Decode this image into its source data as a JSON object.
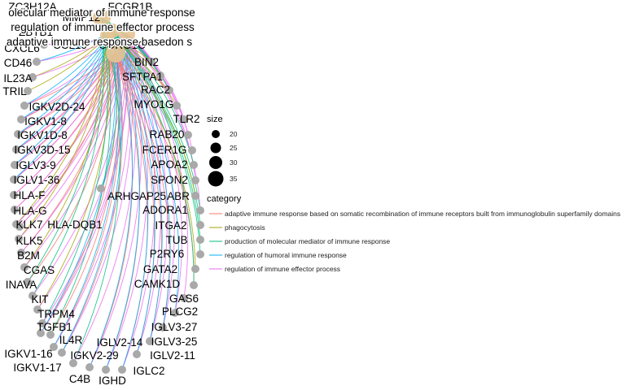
{
  "chart_data": {
    "type": "network",
    "categories": [
      {
        "name": "adaptive immune response based on somatic recombination of immune receptors built from immunoglobulin superfamily domains",
        "display": "adaptive immune response basedon s",
        "color": "#F8766D"
      },
      {
        "name": "phagocytosis",
        "display": "phagocytosis",
        "color": "#A3A500"
      },
      {
        "name": "production of molecular mediator of immune response",
        "display": "olecular mediator of immune response",
        "color": "#00BF7D"
      },
      {
        "name": "regulation of humoral immune response",
        "display": "",
        "color": "#00B0F6"
      },
      {
        "name": "regulation of immune effector process",
        "display": "regulation of immune effector process",
        "color": "#E76BF3"
      }
    ],
    "top_overlap_labels": [
      "ZC3H12A",
      "MMP12",
      "ZBTB1",
      "CCL19",
      "CORO1C",
      "FCGR1B"
    ],
    "genes": [
      "CXCL6",
      "CD46",
      "IL23A",
      "TRIL",
      "IGKV2D-24",
      "IGKV1-8",
      "IGKV1D-8",
      "IGKV3D-15",
      "IGLV3-9",
      "IGLV1-36",
      "HLA-F",
      "HLA-G",
      "KLK7",
      "HLA-DQB1",
      "KLK5",
      "B2M",
      "CGAS",
      "INAVA",
      "KIT",
      "TRPM4",
      "TGFB1",
      "IL4R",
      "IGKV1-16",
      "IGKV1-17",
      "IGKV2-29",
      "C4B",
      "IGHD",
      "IGLC2",
      "IGLV2-14",
      "IGLV2-11",
      "IGLV3-25",
      "IGLV3-27",
      "PLCG2",
      "GAS6",
      "CAMK1D",
      "GATA2",
      "P2RY6",
      "TUB",
      "ITGA2",
      "ADORA1",
      "ABR",
      "ARHGAP25",
      "SPON2",
      "APOA2",
      "FCER1G",
      "RAB20",
      "TLR2",
      "MYO1G",
      "RAC2",
      "SFTPA1",
      "BIN2"
    ]
  },
  "legend": {
    "size_title": "size",
    "size_values": [
      20,
      25,
      30,
      35
    ],
    "category_title": "category",
    "category_labels": [
      "adaptive immune response based on somatic recombination of immune receptors built from immunoglobulin superfamily domains",
      "phagocytosis",
      "production of molecular mediator of immune response",
      "regulation of humoral immune response",
      "regulation of immune effector process"
    ]
  }
}
